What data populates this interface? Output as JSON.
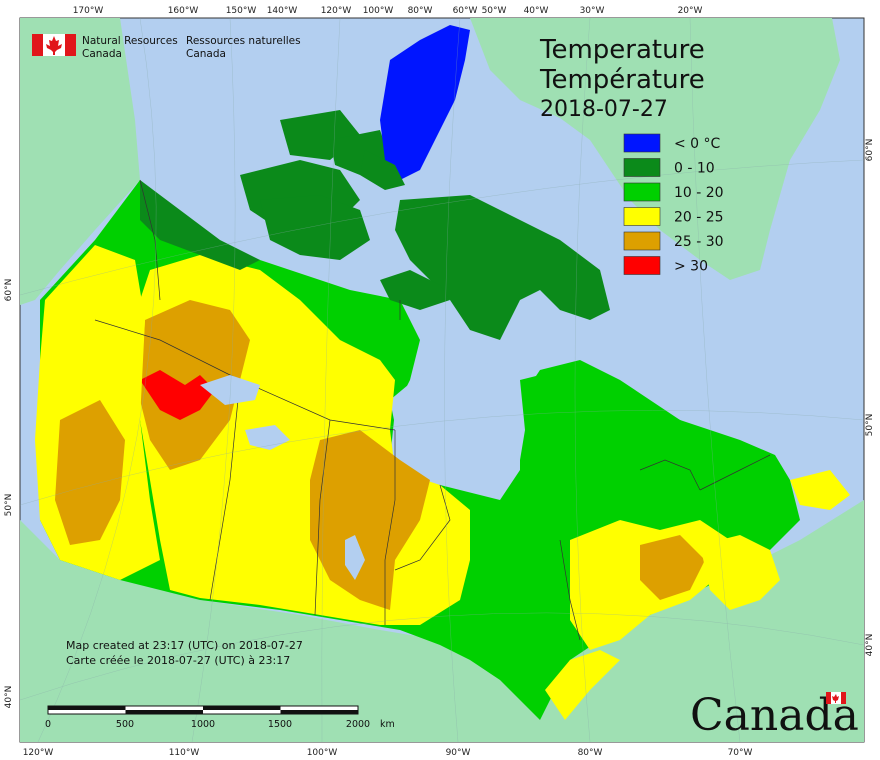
{
  "map": {
    "title_en": "Temperature",
    "title_fr": "Température",
    "date": "2018-07-27",
    "agency_en_1": "Natural Resources",
    "agency_en_2": "Canada",
    "agency_fr_1": "Ressources naturelles",
    "agency_fr_2": "Canada",
    "wordmark": "Canada",
    "note_en": "Map created at 23:17 (UTC) on 2018-07-27",
    "note_fr": "Carte créée le 2018-07-27 (UTC) à 23:17",
    "scalebar": {
      "labels": [
        "0",
        "500",
        "1000",
        "1500",
        "2000"
      ],
      "unit": "km"
    },
    "top_ticks": [
      "170°W",
      "160°W",
      "150°W",
      "140°W",
      "120°W",
      "100°W",
      "80°W",
      "60°W",
      "50°W",
      "40°W",
      "30°W",
      "20°W"
    ],
    "bottom_ticks": [
      "120°W",
      "110°W",
      "100°W",
      "90°W",
      "80°W",
      "70°W"
    ],
    "left_ticks": [
      "60°N",
      "50°N",
      "40°N"
    ],
    "right_ticks": [
      "60°N",
      "50°N",
      "40°N"
    ],
    "colors": {
      "ocean": "#b3cff0",
      "land_other": "#9fe0b3",
      "below0": "#0015ff",
      "t0_10": "#0b8a1a",
      "t10_20": "#00d000",
      "t20_25": "#ffff00",
      "t25_30": "#dda000",
      "above30": "#ff0000"
    }
  },
  "legend": [
    {
      "label": "< 0 °C",
      "color": "#0015ff"
    },
    {
      "label": "0 - 10",
      "color": "#0b8a1a"
    },
    {
      "label": "10 - 20",
      "color": "#00d000"
    },
    {
      "label": "20 - 25",
      "color": "#ffff00"
    },
    {
      "label": "25 - 30",
      "color": "#dda000"
    },
    {
      "label": "> 30",
      "color": "#ff0000"
    }
  ]
}
